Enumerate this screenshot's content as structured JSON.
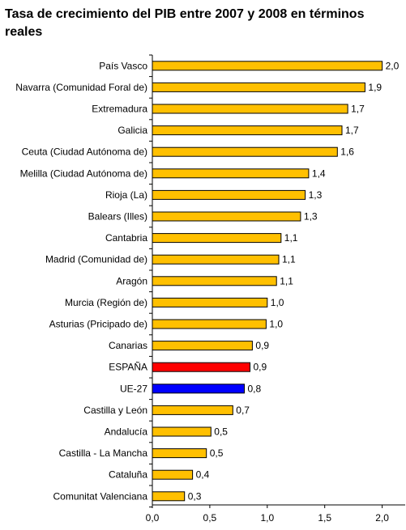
{
  "chart_data": {
    "type": "bar",
    "orientation": "horizontal",
    "title": "Tasa de crecimiento del PIB entre 2007 y 2008 en términos reales",
    "xlabel": "",
    "ylabel": "",
    "xlim": [
      0,
      2.2
    ],
    "x_ticks": [
      "0,0",
      "0,5",
      "1,0",
      "1,5",
      "2,0"
    ],
    "grid": false,
    "legend": "none",
    "categories": [
      "País Vasco",
      "Navarra (Comunidad Foral de)",
      "Extremadura",
      "Galicia",
      "Ceuta (Ciudad Autónoma de)",
      "Melilla (Ciudad Autónoma de)",
      "Rioja (La)",
      "Balears (Illes)",
      "Cantabria",
      "Madrid (Comunidad de)",
      "Aragón",
      "Murcia (Región de)",
      "Asturias (Pricipado de)",
      "Canarias",
      "ESPAÑA",
      "UE-27",
      "Castilla y León",
      "Andalucía",
      "Castilla - La Mancha",
      "Cataluña",
      "Comunitat Valenciana"
    ],
    "values": [
      2.0,
      1.85,
      1.7,
      1.65,
      1.61,
      1.36,
      1.33,
      1.29,
      1.12,
      1.1,
      1.08,
      1.0,
      0.99,
      0.87,
      0.85,
      0.8,
      0.7,
      0.51,
      0.47,
      0.35,
      0.28
    ],
    "value_labels": [
      "2,0",
      "1,9",
      "1,7",
      "1,7",
      "1,6",
      "1,4",
      "1,3",
      "1,3",
      "1,1",
      "1,1",
      "1,1",
      "1,0",
      "1,0",
      "0,9",
      "0,9",
      "0,8",
      "0,7",
      "0,5",
      "0,5",
      "0,4",
      "0,3"
    ],
    "colors": {
      "default": "#ffc000",
      "ESPAÑA": "#ff0000",
      "UE-27": "#0000ff",
      "bar_border": "#000000"
    }
  }
}
